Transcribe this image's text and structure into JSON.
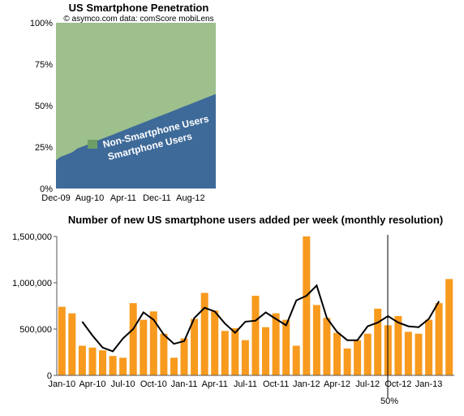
{
  "chart_data": [
    {
      "type": "area",
      "title": "US Smartphone Penetration",
      "subtitle": "© asymco.com data: comScore mobiLens",
      "xlabel": "",
      "ylabel": "",
      "ylim": [
        0,
        100
      ],
      "y_ticks": [
        "0%",
        "25%",
        "50%",
        "75%",
        "100%"
      ],
      "x_ticks": [
        "Dec-09",
        "Aug-10",
        "Apr-11",
        "Dec-11",
        "Aug-12"
      ],
      "stacked": true,
      "annotations": [
        "Non-Smartphone Users",
        "Smartphone Users"
      ],
      "colors": {
        "smartphone": "#3E6A99",
        "non_smartphone": "#9DC08D",
        "marker": "#6E9E66"
      },
      "series": [
        {
          "name": "Smartphone Users",
          "values": [
            17,
            19,
            20,
            21,
            22,
            24,
            25,
            26,
            27,
            28,
            29,
            30,
            31,
            32,
            33,
            34,
            35,
            36,
            37,
            38,
            39,
            40,
            41,
            42,
            43,
            44,
            45,
            46,
            47,
            48,
            49,
            50,
            51,
            52,
            53,
            54,
            55,
            56,
            57
          ]
        },
        {
          "name": "Non-Smartphone Users",
          "values": [
            83,
            81,
            80,
            79,
            78,
            76,
            75,
            74,
            73,
            72,
            71,
            70,
            69,
            68,
            67,
            66,
            65,
            64,
            63,
            62,
            61,
            60,
            59,
            58,
            57,
            56,
            55,
            54,
            53,
            52,
            51,
            50,
            49,
            48,
            47,
            46,
            45,
            44,
            43
          ]
        }
      ]
    },
    {
      "type": "bar",
      "title": "Number of new US smartphone users added per week (monthly resolution)",
      "xlabel": "",
      "ylabel": "",
      "ylim": [
        0,
        1500000
      ],
      "y_ticks": [
        "0",
        "500,000",
        "1,000,000",
        "1,500,000"
      ],
      "x_ticks": [
        "Jan-10",
        "Apr-10",
        "Jul-10",
        "Oct-10",
        "Jan-11",
        "Apr-11",
        "Jul-11",
        "Oct-11",
        "Jan-12",
        "Apr-12",
        "Jul-12",
        "Oct-12",
        "Jan-13"
      ],
      "grid": false,
      "colors": {
        "bars": "#F79A1E",
        "line": "#000000"
      },
      "values": [
        740000,
        670000,
        320000,
        300000,
        270000,
        210000,
        190000,
        780000,
        600000,
        690000,
        450000,
        190000,
        400000,
        610000,
        890000,
        700000,
        480000,
        510000,
        380000,
        860000,
        520000,
        670000,
        600000,
        320000,
        1500000,
        760000,
        620000,
        460000,
        290000,
        380000,
        450000,
        720000,
        540000,
        640000,
        470000,
        450000,
        600000,
        780000,
        1040000
      ],
      "trend_line": [
        null,
        null,
        580000,
        430000,
        300000,
        260000,
        400000,
        500000,
        680000,
        600000,
        440000,
        340000,
        370000,
        620000,
        730000,
        690000,
        560000,
        460000,
        580000,
        590000,
        680000,
        610000,
        540000,
        810000,
        860000,
        970000,
        620000,
        470000,
        380000,
        380000,
        530000,
        570000,
        640000,
        570000,
        530000,
        520000,
        610000,
        800000,
        null
      ],
      "annotations": [
        "50%"
      ]
    }
  ]
}
